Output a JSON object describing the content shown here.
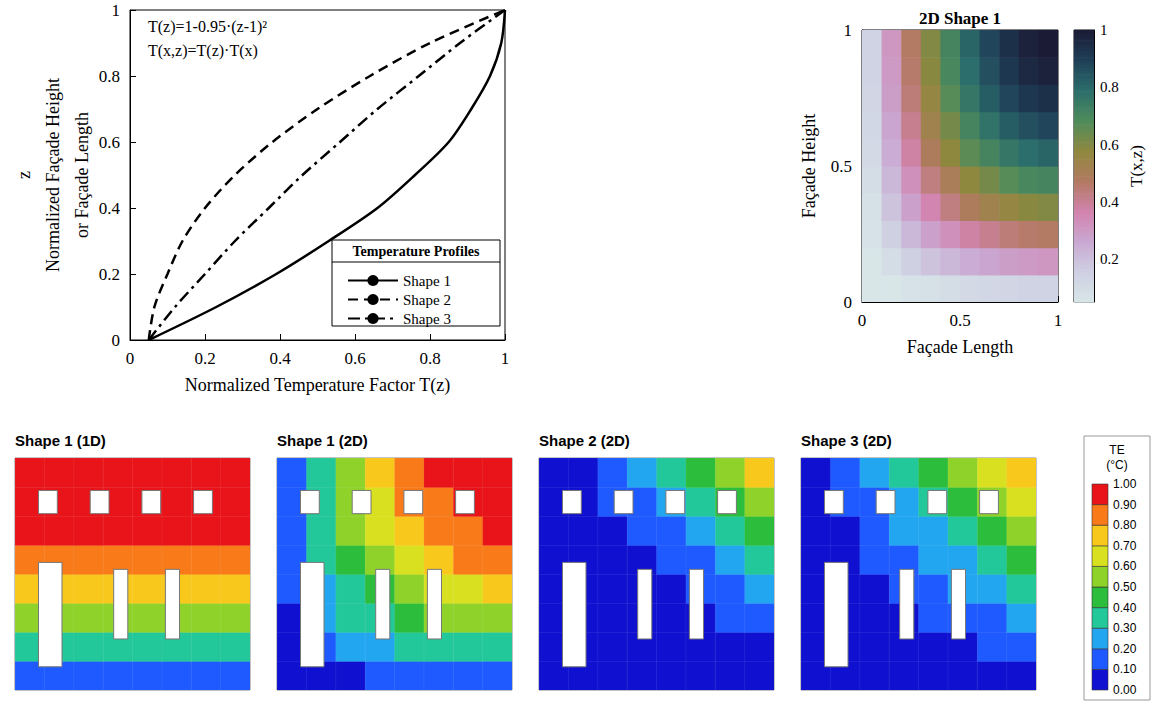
{
  "chart_data": [
    {
      "type": "line",
      "annotations": [
        "T(z)=1-0.95·(z-1)²",
        "T(x,z)=T(z)·T(x)"
      ],
      "x_label": "Normalized Temperature Factor T(z)",
      "y_label": [
        "z",
        "Normalized Façade Height",
        "or Façade Length"
      ],
      "xlim": [
        0,
        1
      ],
      "xticks": [
        0,
        0.2,
        0.4,
        0.6,
        0.8,
        1
      ],
      "ylim": [
        0,
        1
      ],
      "yticks": [
        0,
        0.2,
        0.4,
        0.6,
        0.8,
        1
      ],
      "grid": false,
      "legend": "lower right",
      "legend_title": "Temperature Profiles",
      "y": [
        0,
        0.1,
        0.2,
        0.3,
        0.4,
        0.5,
        0.6,
        0.7,
        0.8,
        0.9,
        1
      ],
      "series": [
        {
          "name": "Shape 1",
          "color": "#000000",
          "line_style": "solid",
          "x": [
            0.05,
            0.23,
            0.39,
            0.53,
            0.66,
            0.76,
            0.85,
            0.91,
            0.96,
            0.99,
            1.0
          ]
        },
        {
          "name": "Shape 2",
          "color": "#000000",
          "line_style": "dashed",
          "x": [
            0.05,
            0.065,
            0.1,
            0.14,
            0.2,
            0.28,
            0.38,
            0.5,
            0.64,
            0.8,
            1.0
          ]
        },
        {
          "name": "Shape 3",
          "color": "#000000",
          "line_style": "dashdot",
          "x": [
            0.05,
            0.12,
            0.2,
            0.28,
            0.37,
            0.46,
            0.56,
            0.66,
            0.77,
            0.88,
            1.0
          ]
        }
      ]
    },
    {
      "type": "heatmap",
      "title": "2D Shape 1",
      "x_label": "Façade Length",
      "y_label": "Façade Height",
      "xlim": [
        0,
        1
      ],
      "xticks": [
        0,
        0.5,
        1
      ],
      "ylim": [
        0,
        1
      ],
      "yticks": [
        0,
        0.5,
        1
      ],
      "x": [
        0.05,
        0.15,
        0.25,
        0.35,
        0.45,
        0.55,
        0.65,
        0.75,
        0.85,
        0.95
      ],
      "y": [
        0.05,
        0.15,
        0.25,
        0.35,
        0.45,
        0.55,
        0.65,
        0.75,
        0.85,
        0.95
      ],
      "cells": [
        [
          0.02,
          0.04,
          0.07,
          0.08,
          0.1,
          0.11,
          0.12,
          0.13,
          0.14,
          0.14
        ],
        [
          0.04,
          0.1,
          0.15,
          0.19,
          0.22,
          0.25,
          0.27,
          0.29,
          0.3,
          0.31
        ],
        [
          0.07,
          0.15,
          0.22,
          0.28,
          0.33,
          0.38,
          0.41,
          0.44,
          0.46,
          0.47
        ],
        [
          0.08,
          0.19,
          0.28,
          0.36,
          0.43,
          0.49,
          0.53,
          0.56,
          0.59,
          0.6
        ],
        [
          0.1,
          0.22,
          0.33,
          0.43,
          0.5,
          0.58,
          0.62,
          0.67,
          0.7,
          0.71
        ],
        [
          0.11,
          0.25,
          0.38,
          0.49,
          0.58,
          0.66,
          0.71,
          0.76,
          0.79,
          0.81
        ],
        [
          0.12,
          0.27,
          0.41,
          0.53,
          0.62,
          0.71,
          0.77,
          0.83,
          0.86,
          0.88
        ],
        [
          0.13,
          0.29,
          0.44,
          0.56,
          0.67,
          0.76,
          0.83,
          0.88,
          0.92,
          0.94
        ],
        [
          0.14,
          0.3,
          0.46,
          0.59,
          0.7,
          0.79,
          0.86,
          0.92,
          0.96,
          0.98
        ],
        [
          0.14,
          0.31,
          0.47,
          0.6,
          0.71,
          0.81,
          0.88,
          0.94,
          0.98,
          1.0
        ]
      ],
      "colorbar": {
        "label": "T(x,z)",
        "range": [
          0.05,
          1
        ],
        "ticks": [
          0.2,
          0.4,
          0.6,
          0.8,
          1
        ]
      }
    },
    {
      "type": "heatmap",
      "tick_labels": false,
      "xlim": [
        0,
        1
      ],
      "ylim": [
        0,
        1
      ],
      "x": [
        0.0625,
        0.1875,
        0.3125,
        0.4375,
        0.5625,
        0.6875,
        0.8125,
        0.9375
      ],
      "y": [
        0.0625,
        0.1875,
        0.3125,
        0.4375,
        0.5625,
        0.6875,
        0.8125,
        0.9375
      ],
      "panels": [
        {
          "title": "Shape 1 (1D)",
          "cells": [
            [
              0.17,
              0.17,
              0.17,
              0.17,
              0.17,
              0.17,
              0.17,
              0.17
            ],
            [
              0.37,
              0.37,
              0.37,
              0.37,
              0.37,
              0.37,
              0.37,
              0.37
            ],
            [
              0.55,
              0.55,
              0.55,
              0.55,
              0.55,
              0.55,
              0.55,
              0.55
            ],
            [
              0.7,
              0.7,
              0.7,
              0.7,
              0.7,
              0.7,
              0.7,
              0.7
            ],
            [
              0.82,
              0.82,
              0.82,
              0.82,
              0.82,
              0.82,
              0.82,
              0.82
            ],
            [
              0.91,
              0.91,
              0.91,
              0.91,
              0.91,
              0.91,
              0.91,
              0.91
            ],
            [
              0.97,
              0.97,
              0.97,
              0.97,
              0.97,
              0.97,
              0.97,
              0.97
            ],
            [
              1.0,
              1.0,
              1.0,
              1.0,
              1.0,
              1.0,
              1.0,
              1.0
            ]
          ]
        },
        {
          "title": "Shape 1 (2D)",
          "cells": [
            [
              0.03,
              0.06,
              0.09,
              0.12,
              0.14,
              0.15,
              0.16,
              0.17
            ],
            [
              0.06,
              0.14,
              0.2,
              0.26,
              0.3,
              0.34,
              0.36,
              0.37
            ],
            [
              0.09,
              0.2,
              0.3,
              0.39,
              0.45,
              0.5,
              0.53,
              0.55
            ],
            [
              0.12,
              0.26,
              0.39,
              0.49,
              0.57,
              0.64,
              0.68,
              0.7
            ],
            [
              0.14,
              0.3,
              0.45,
              0.57,
              0.67,
              0.75,
              0.8,
              0.82
            ],
            [
              0.15,
              0.34,
              0.5,
              0.64,
              0.75,
              0.83,
              0.88,
              0.91
            ],
            [
              0.16,
              0.36,
              0.53,
              0.68,
              0.8,
              0.88,
              0.94,
              0.97
            ],
            [
              0.17,
              0.37,
              0.55,
              0.7,
              0.82,
              0.91,
              0.97,
              1.0
            ]
          ]
        },
        {
          "title": "Shape 2 (2D)",
          "cells": [
            [
              0.0,
              0.01,
              0.01,
              0.01,
              0.02,
              0.03,
              0.04,
              0.05
            ],
            [
              0.01,
              0.01,
              0.02,
              0.02,
              0.03,
              0.05,
              0.07,
              0.09
            ],
            [
              0.01,
              0.02,
              0.02,
              0.03,
              0.05,
              0.07,
              0.1,
              0.13
            ],
            [
              0.01,
              0.02,
              0.03,
              0.05,
              0.08,
              0.11,
              0.15,
              0.2
            ],
            [
              0.02,
              0.03,
              0.05,
              0.08,
              0.12,
              0.16,
              0.22,
              0.3
            ],
            [
              0.03,
              0.05,
              0.07,
              0.11,
              0.16,
              0.23,
              0.32,
              0.42
            ],
            [
              0.04,
              0.07,
              0.1,
              0.15,
              0.22,
              0.32,
              0.44,
              0.57
            ],
            [
              0.05,
              0.09,
              0.13,
              0.2,
              0.3,
              0.42,
              0.57,
              0.76
            ]
          ]
        },
        {
          "title": "Shape 3 (2D)",
          "cells": [
            [
              0.01,
              0.01,
              0.02,
              0.03,
              0.04,
              0.05,
              0.07,
              0.08
            ],
            [
              0.01,
              0.03,
              0.04,
              0.06,
              0.08,
              0.09,
              0.12,
              0.14
            ],
            [
              0.02,
              0.04,
              0.07,
              0.09,
              0.12,
              0.15,
              0.19,
              0.23
            ],
            [
              0.03,
              0.06,
              0.09,
              0.13,
              0.17,
              0.21,
              0.26,
              0.31
            ],
            [
              0.04,
              0.08,
              0.12,
              0.17,
              0.22,
              0.28,
              0.34,
              0.41
            ],
            [
              0.05,
              0.09,
              0.15,
              0.21,
              0.28,
              0.35,
              0.43,
              0.51
            ],
            [
              0.07,
              0.12,
              0.19,
              0.26,
              0.34,
              0.43,
              0.53,
              0.64
            ],
            [
              0.08,
              0.14,
              0.23,
              0.31,
              0.41,
              0.51,
              0.64,
              0.76
            ]
          ]
        }
      ],
      "colorbar": {
        "label": "TE (°C)",
        "range": [
          0,
          1
        ],
        "ticks": [
          {
            "value": 0,
            "label": "0.00"
          },
          {
            "value": 0.1,
            "label": "0.10"
          },
          {
            "value": 0.2,
            "label": "0.20"
          },
          {
            "value": 0.3,
            "label": "0.30"
          },
          {
            "value": 0.4,
            "label": "0.40"
          },
          {
            "value": 0.5,
            "label": "0.50"
          },
          {
            "value": 0.6,
            "label": "0.60"
          },
          {
            "value": 0.7,
            "label": "0.70"
          },
          {
            "value": 0.8,
            "label": "0.80"
          },
          {
            "value": 0.9,
            "label": "0.90"
          },
          {
            "value": 1,
            "label": "1.00"
          }
        ]
      }
    }
  ]
}
